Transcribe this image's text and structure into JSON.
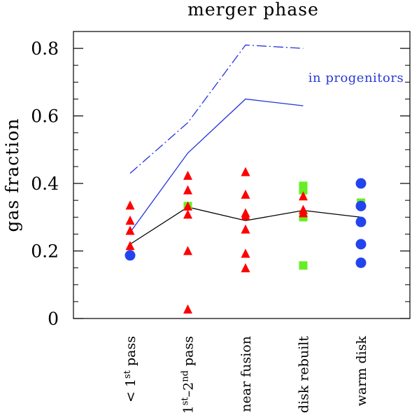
{
  "chart_data": {
    "type": "scatter",
    "title": "merger phase",
    "ylabel": "gas fraction",
    "xlabel": "",
    "ylim": [
      0,
      0.85
    ],
    "yticks": [
      0,
      0.2,
      0.4,
      0.6,
      0.8
    ],
    "ytick_labels": [
      "0",
      "0.2",
      "0.4",
      "0.6",
      "0.8"
    ],
    "grid": false,
    "categories": [
      {
        "label": "< 1st pass",
        "parts": [
          {
            "t": "< 1",
            "sup": false
          },
          {
            "t": "st",
            "sup": true
          },
          {
            "t": " pass",
            "sup": false
          }
        ]
      },
      {
        "label": "1st-2nd pass",
        "parts": [
          {
            "t": "1",
            "sup": false
          },
          {
            "t": "st",
            "sup": true
          },
          {
            "t": "–2",
            "sup": false
          },
          {
            "t": "nd",
            "sup": true
          },
          {
            "t": " pass",
            "sup": false
          }
        ]
      },
      {
        "label": "near fusion",
        "parts": [
          {
            "t": "near fusion",
            "sup": false
          }
        ]
      },
      {
        "label": "disk rebuilt",
        "parts": [
          {
            "t": "disk rebuilt",
            "sup": false
          }
        ]
      },
      {
        "label": "warm disk",
        "parts": [
          {
            "t": "warm disk",
            "sup": false
          }
        ]
      }
    ],
    "annotation": "in progenitors",
    "colors": {
      "triangle": "#ff0000",
      "square": "#66ee22",
      "circle": "#2244ee",
      "median": "#000000",
      "progenitor": "#2233dd"
    },
    "series": [
      {
        "marker": "triangle",
        "points": [
          [
            0,
            0.333
          ],
          [
            0,
            0.288
          ],
          [
            0,
            0.258
          ],
          [
            0,
            0.213
          ],
          [
            1,
            0.421
          ],
          [
            1,
            0.378
          ],
          [
            1,
            0.33
          ],
          [
            1,
            0.306
          ],
          [
            1,
            0.198
          ],
          [
            1,
            0.025
          ],
          [
            2,
            0.432
          ],
          [
            2,
            0.365
          ],
          [
            2,
            0.31
          ],
          [
            2,
            0.302
          ],
          [
            2,
            0.262
          ],
          [
            2,
            0.19
          ],
          [
            2,
            0.147
          ],
          [
            3,
            0.36
          ],
          [
            3,
            0.32
          ],
          [
            3,
            0.31
          ]
        ]
      },
      {
        "marker": "square",
        "points": [
          [
            1,
            0.333
          ],
          [
            3,
            0.393
          ],
          [
            3,
            0.38
          ],
          [
            3,
            0.3
          ],
          [
            3,
            0.157
          ],
          [
            4,
            0.343
          ]
        ]
      },
      {
        "marker": "circle",
        "points": [
          [
            0,
            0.187
          ],
          [
            4,
            0.4
          ],
          [
            4,
            0.333
          ],
          [
            4,
            0.286
          ],
          [
            4,
            0.22
          ],
          [
            4,
            0.165
          ]
        ]
      },
      {
        "line": "median",
        "x": [
          0,
          1,
          2,
          3,
          4
        ],
        "y": [
          0.22,
          0.33,
          0.29,
          0.32,
          0.3
        ]
      },
      {
        "line": "progenitor-mean",
        "x": [
          0,
          1,
          2,
          3
        ],
        "y": [
          0.255,
          0.49,
          0.65,
          0.63
        ]
      },
      {
        "line": "progenitor-upper",
        "x": [
          0,
          1,
          2,
          3
        ],
        "y": [
          0.43,
          0.58,
          0.81,
          0.8
        ]
      }
    ]
  }
}
